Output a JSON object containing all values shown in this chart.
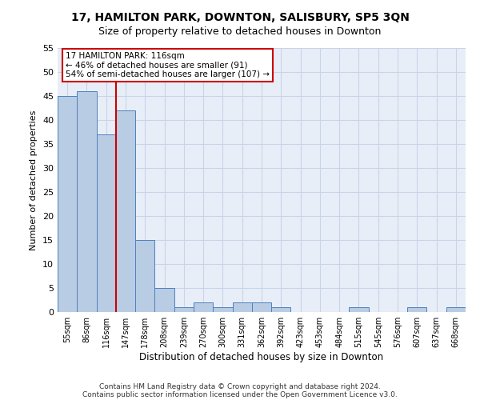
{
  "title": "17, HAMILTON PARK, DOWNTON, SALISBURY, SP5 3QN",
  "subtitle": "Size of property relative to detached houses in Downton",
  "xlabel": "Distribution of detached houses by size in Downton",
  "ylabel": "Number of detached properties",
  "bar_labels": [
    "55sqm",
    "86sqm",
    "116sqm",
    "147sqm",
    "178sqm",
    "208sqm",
    "239sqm",
    "270sqm",
    "300sqm",
    "331sqm",
    "362sqm",
    "392sqm",
    "423sqm",
    "453sqm",
    "484sqm",
    "515sqm",
    "545sqm",
    "576sqm",
    "607sqm",
    "637sqm",
    "668sqm"
  ],
  "bar_values": [
    45,
    46,
    37,
    42,
    15,
    5,
    1,
    2,
    1,
    2,
    2,
    1,
    0,
    0,
    0,
    1,
    0,
    0,
    1,
    0,
    1
  ],
  "bar_color": "#b8cce4",
  "bar_edge_color": "#4f81bd",
  "highlight_index": 2,
  "highlight_line_color": "#cc0000",
  "ylim": [
    0,
    55
  ],
  "yticks": [
    0,
    5,
    10,
    15,
    20,
    25,
    30,
    35,
    40,
    45,
    50,
    55
  ],
  "annotation_title": "17 HAMILTON PARK: 116sqm",
  "annotation_line1": "← 46% of detached houses are smaller (91)",
  "annotation_line2": "54% of semi-detached houses are larger (107) →",
  "annotation_box_color": "#ffffff",
  "annotation_box_edge_color": "#cc0000",
  "grid_color": "#c8d4e8",
  "bg_color": "#ffffff",
  "footer1": "Contains HM Land Registry data © Crown copyright and database right 2024.",
  "footer2": "Contains public sector information licensed under the Open Government Licence v3.0."
}
